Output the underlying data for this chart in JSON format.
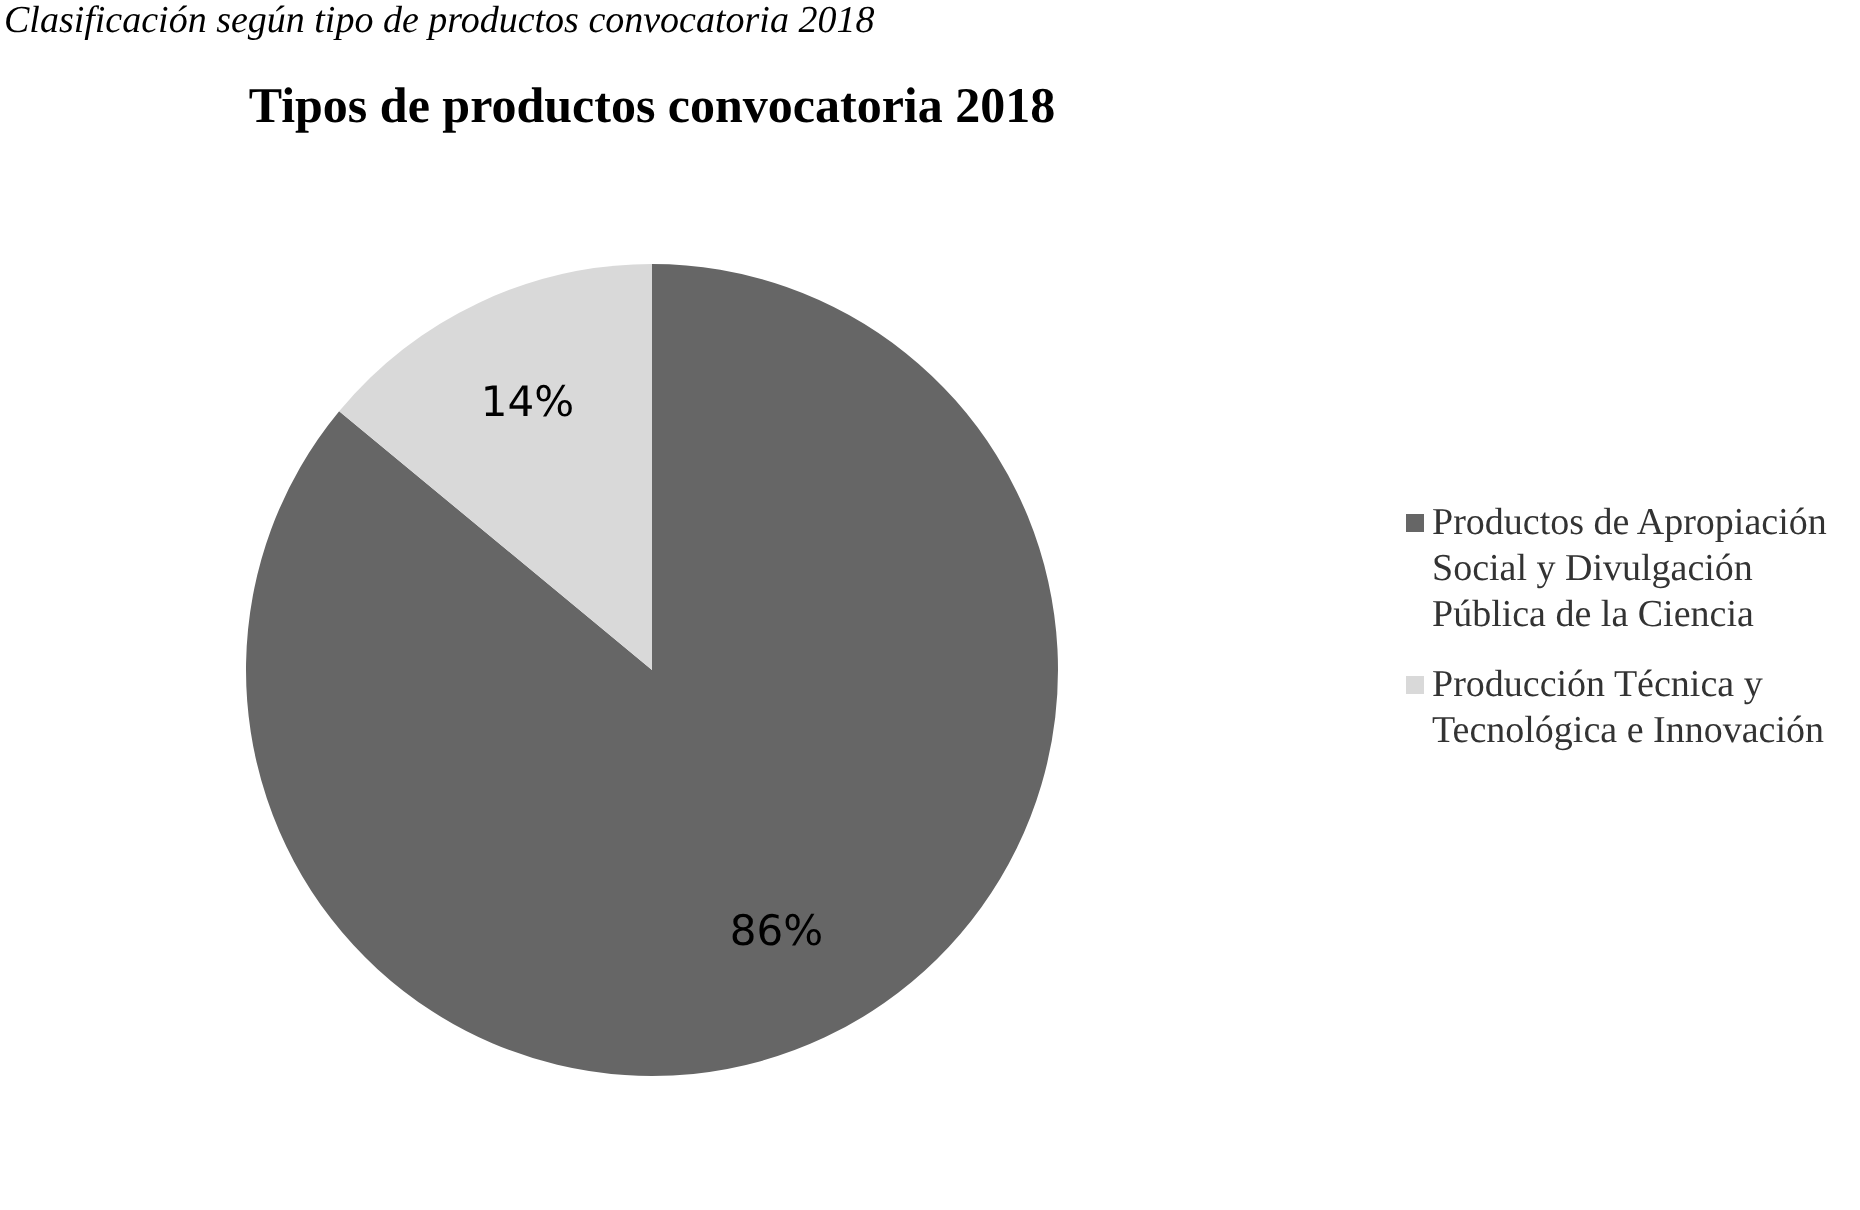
{
  "chart_data": {
    "type": "pie",
    "title": "Tipos de productos convocatoria 2018",
    "annotations": [
      "Clasificación según tipo de productos convocatoria 2018"
    ],
    "categories": [
      "Productos de Apropiación Social y Divulgación Pública de la Ciencia",
      "Producción Técnica y Tecnológica e Innovación"
    ],
    "values": [
      86,
      14
    ],
    "colors": [
      "#666666",
      "#d9d9d9"
    ],
    "value_labels": [
      "86%",
      "14%"
    ],
    "legend": "right"
  }
}
